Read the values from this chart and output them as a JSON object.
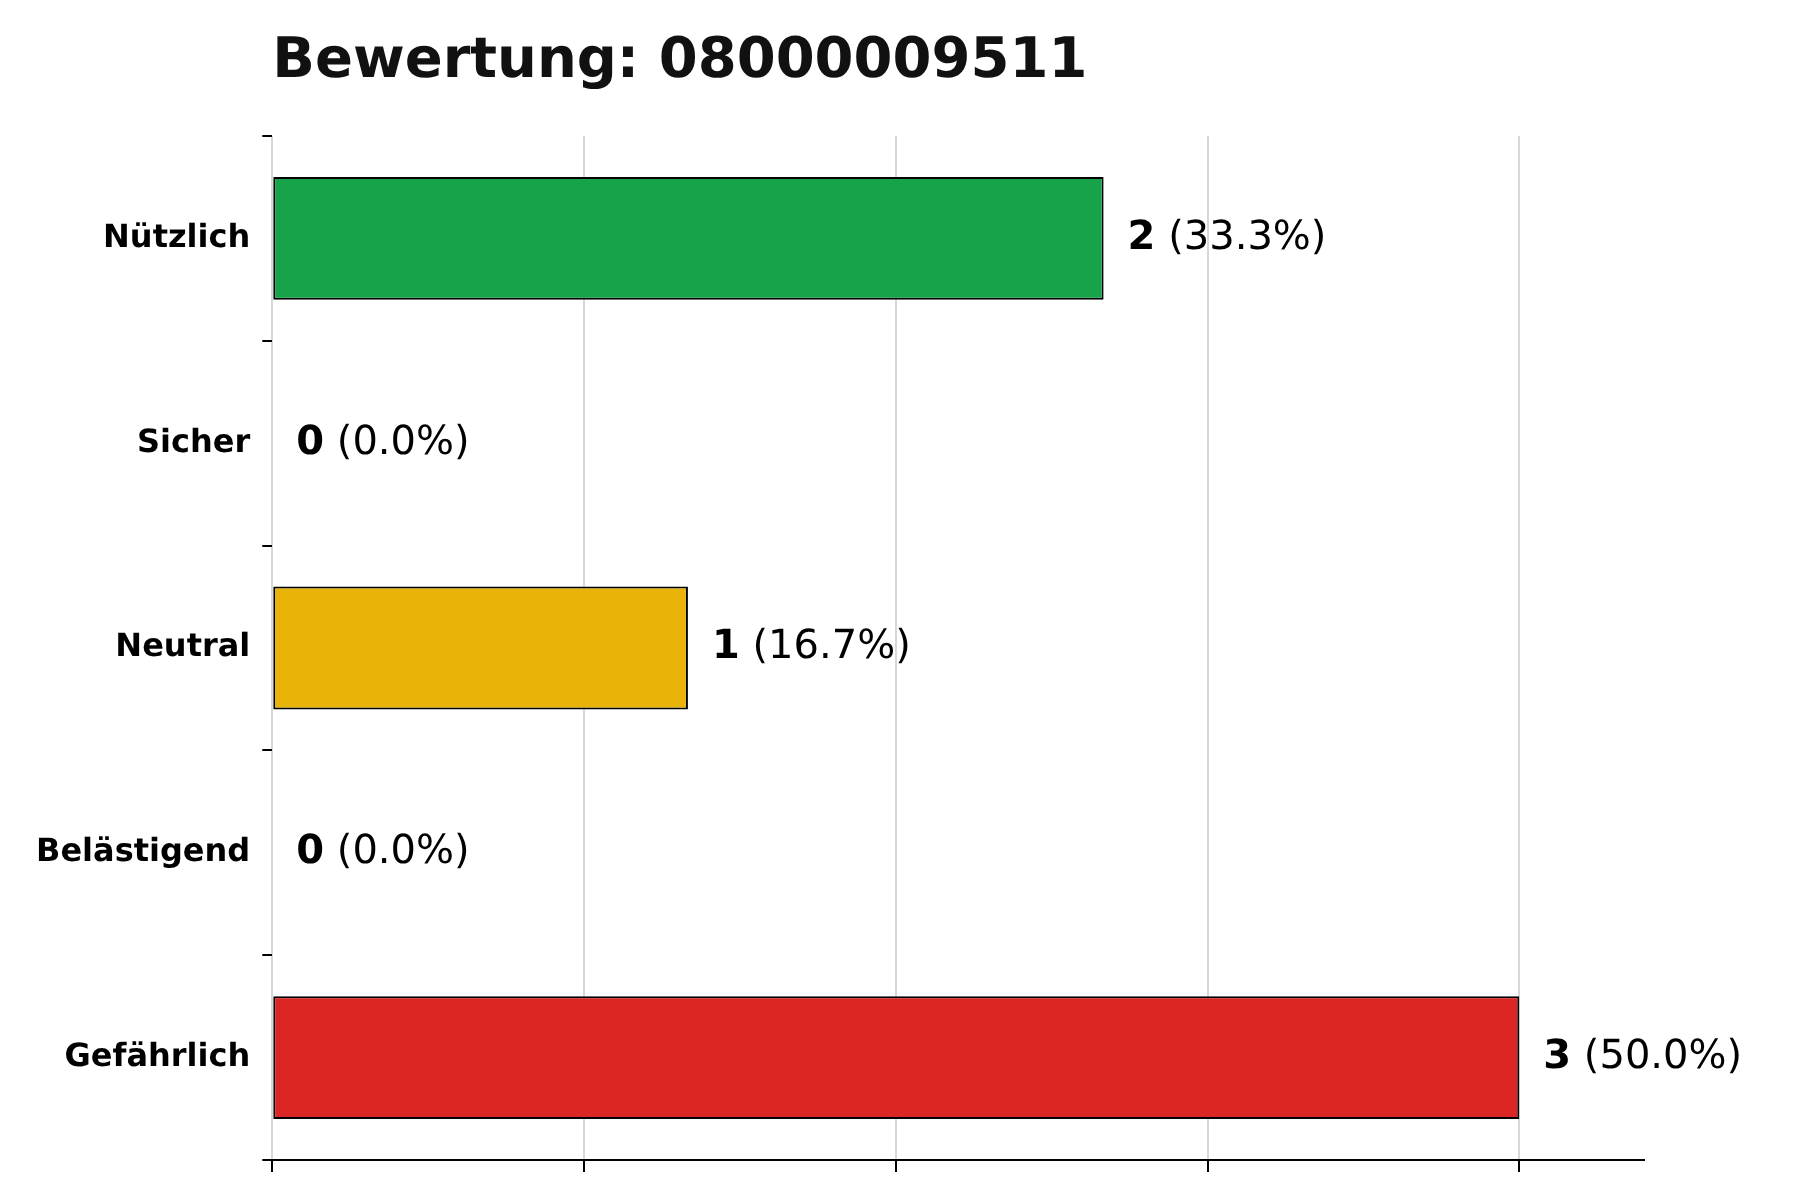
{
  "chart_data": {
    "type": "bar",
    "orientation": "horizontal",
    "title": "Bewertung: 08000009511",
    "categories": [
      "Nützlich",
      "Sicher",
      "Neutral",
      "Belästigend",
      "Gefährlich"
    ],
    "values": [
      2,
      0,
      1,
      0,
      3
    ],
    "colors": [
      "#16a34a",
      "#3b82f6",
      "#eab308",
      "#f97316",
      "#dc2626"
    ],
    "value_labels": [
      "2 (33.3%)",
      "0 (0.0%)",
      "1 (16.7%)",
      "0 (0.0%)",
      "3 (50.0%)"
    ],
    "xlim": [
      0,
      3.3
    ],
    "xticks": [
      {
        "value": 0,
        "label": null
      },
      {
        "value": 0.75,
        "label": null
      },
      {
        "value": 1.5,
        "label": null
      },
      {
        "value": 2.25,
        "label": null
      },
      {
        "value": 3,
        "label": null
      }
    ],
    "grid": "x",
    "tick_labels": "y",
    "legend": false
  }
}
